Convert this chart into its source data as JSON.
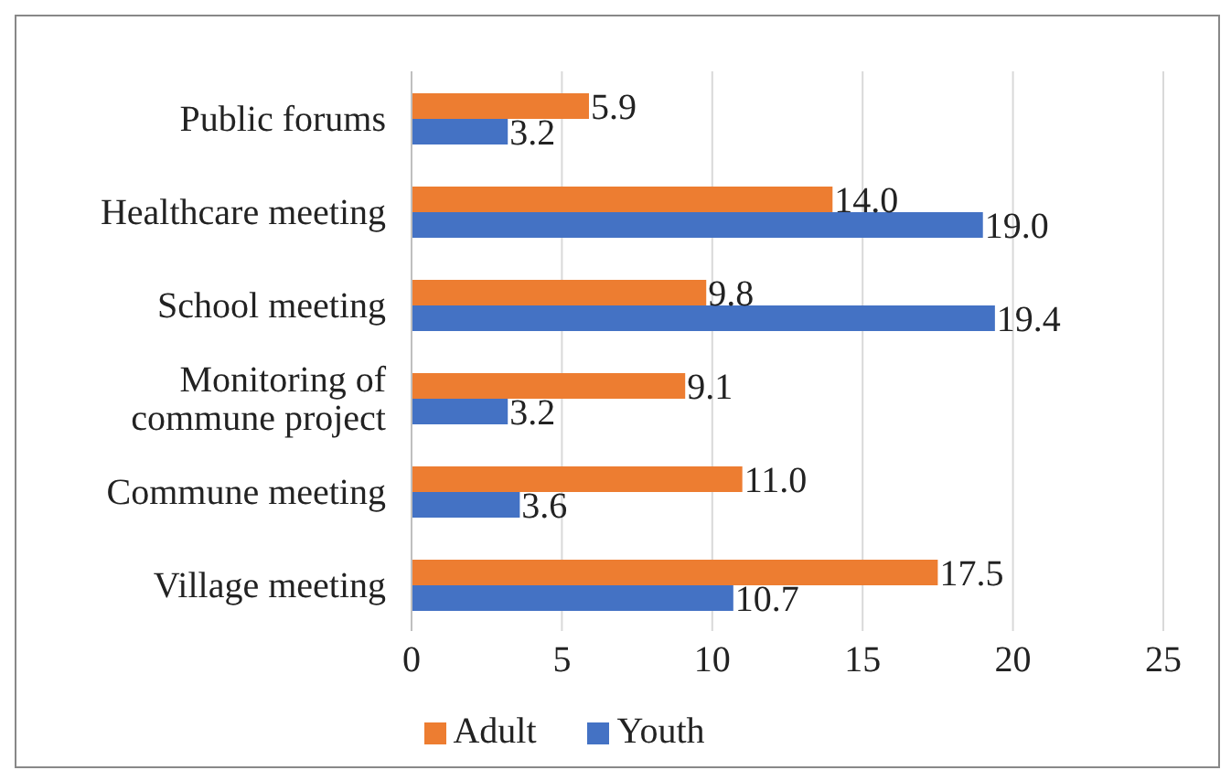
{
  "chart_data": {
    "type": "bar",
    "orientation": "horizontal",
    "categories": [
      "Public forums",
      "Healthcare meeting",
      "School meeting",
      "Monitoring of commune project",
      "Commune meeting",
      "Village meeting"
    ],
    "series": [
      {
        "name": "Adult",
        "color": "#ed7d31",
        "values": [
          5.9,
          14.0,
          9.8,
          9.1,
          11.0,
          17.5
        ],
        "value_labels": [
          "5.9",
          "14.0",
          "9.8",
          "9.1",
          "11.0",
          "17.5"
        ]
      },
      {
        "name": "Youth",
        "color": "#4472c4",
        "values": [
          3.2,
          19.0,
          19.4,
          3.2,
          3.6,
          10.7
        ],
        "value_labels": [
          "3.2",
          "19.0",
          "19.4",
          "3.2",
          "3.6",
          "10.7"
        ]
      }
    ],
    "xlim": [
      0,
      25
    ],
    "xticks": [
      0,
      5,
      10,
      15,
      20,
      25
    ],
    "grid": "x",
    "legend": "bottom"
  }
}
